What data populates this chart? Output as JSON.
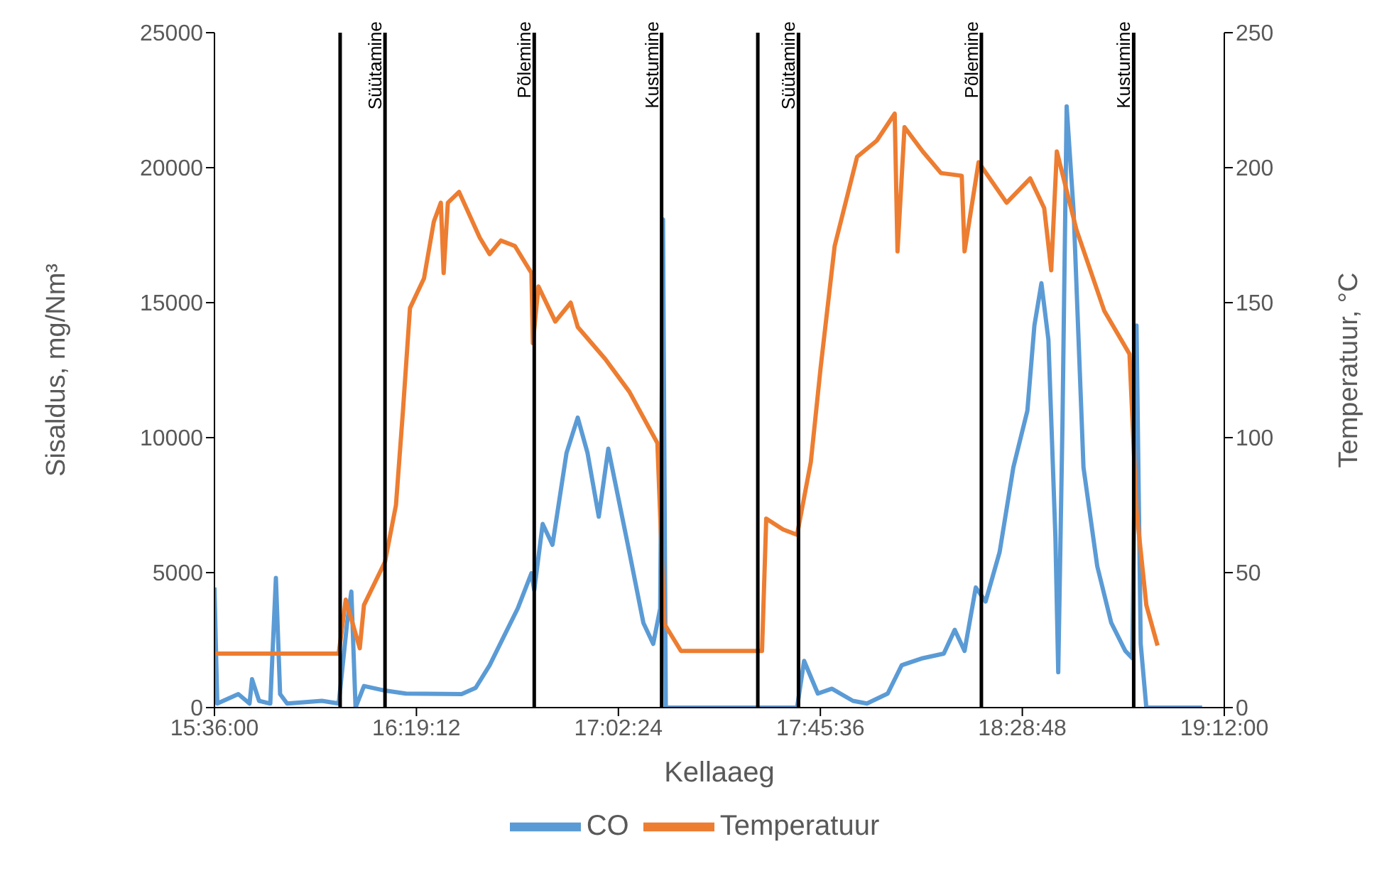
{
  "chart_data": {
    "type": "line",
    "xlabel": "Kellaaeg",
    "ylabel": "Sisaldus, mg/Nm³",
    "y2label": "Temperatuur, °C",
    "xlim": [
      15.6,
      19.2
    ],
    "xticks": [
      {
        "value": 15.6,
        "label": "15:36:00"
      },
      {
        "value": 16.32,
        "label": "16:19:12"
      },
      {
        "value": 17.04,
        "label": "17:02:24"
      },
      {
        "value": 17.76,
        "label": "17:45:36"
      },
      {
        "value": 18.48,
        "label": "18:28:48"
      },
      {
        "value": 19.2,
        "label": "19:12:00"
      }
    ],
    "ylim": [
      0,
      25000
    ],
    "yticks": [
      0,
      5000,
      10000,
      15000,
      20000,
      25000
    ],
    "y2lim": [
      0,
      250
    ],
    "y2ticks": [
      0,
      50,
      100,
      150,
      200,
      250
    ],
    "grid": false,
    "legend": "bottom",
    "marker": "none",
    "line_style": "solid",
    "series": [
      {
        "name": "CO",
        "color": "#5b9bd5",
        "x": [
          15.6,
          15.61,
          15.685,
          15.725,
          15.734,
          15.759,
          15.799,
          15.819,
          15.834,
          15.859,
          15.983,
          16.043,
          16.073,
          16.088,
          16.103,
          16.133,
          16.208,
          16.282,
          16.481,
          16.531,
          16.581,
          16.631,
          16.681,
          16.73,
          16.74,
          16.77,
          16.805,
          16.855,
          16.895,
          16.93,
          16.97,
          17.004,
          17.079,
          17.129,
          17.164,
          17.189,
          17.199,
          17.209,
          17.677,
          17.702,
          17.751,
          17.801,
          17.876,
          17.926,
          18.0,
          18.05,
          18.125,
          18.2,
          18.239,
          18.274,
          18.314,
          18.349,
          18.399,
          18.448,
          18.498,
          18.523,
          18.548,
          18.573,
          18.598,
          18.608,
          18.623,
          18.638,
          18.663,
          18.698,
          18.747,
          18.797,
          18.847,
          18.872,
          18.887,
          18.902,
          18.922,
          19.121
        ],
        "values": [
          4450,
          150,
          500,
          150,
          1050,
          250,
          150,
          4800,
          500,
          150,
          250,
          150,
          3150,
          4300,
          0,
          800,
          630,
          520,
          500,
          730,
          1570,
          2620,
          3670,
          4980,
          4350,
          6800,
          6030,
          9430,
          10740,
          9430,
          7070,
          9590,
          5760,
          3140,
          2360,
          3670,
          18080,
          0,
          0,
          1730,
          520,
          700,
          250,
          150,
          520,
          1570,
          1830,
          2000,
          2880,
          2100,
          4450,
          3930,
          5760,
          8900,
          11000,
          14150,
          15720,
          13620,
          6290,
          1310,
          10480,
          22270,
          18340,
          8900,
          5240,
          3140,
          2100,
          1830,
          14150,
          2360,
          0,
          0
        ]
      },
      {
        "name": "Temperatuur",
        "color": "#ed7d31",
        "axis": "y2",
        "x": [
          15.6,
          16.043,
          16.068,
          16.118,
          16.133,
          16.208,
          16.247,
          16.272,
          16.297,
          16.347,
          16.382,
          16.407,
          16.417,
          16.432,
          16.472,
          16.546,
          16.581,
          16.621,
          16.671,
          16.73,
          16.735,
          16.755,
          16.815,
          16.87,
          16.895,
          16.994,
          17.079,
          17.179,
          17.204,
          17.263,
          17.552,
          17.567,
          17.627,
          17.677,
          17.726,
          17.761,
          17.811,
          17.891,
          17.961,
          18.025,
          18.035,
          18.06,
          18.125,
          18.19,
          18.264,
          18.274,
          18.324,
          18.424,
          18.508,
          18.558,
          18.583,
          18.603,
          18.673,
          18.772,
          18.862,
          18.887,
          18.922,
          18.962
        ],
        "values": [
          20,
          20,
          40,
          22,
          38,
          54,
          75,
          110,
          148,
          159,
          180,
          187,
          161,
          187,
          191,
          174,
          168,
          173,
          171,
          161,
          135,
          156,
          143,
          150,
          141,
          129,
          117,
          98,
          31,
          21,
          21,
          70,
          66,
          64,
          91,
          126,
          171,
          204,
          210,
          220,
          169,
          215,
          206,
          198,
          197,
          169,
          202,
          187,
          196,
          185,
          162,
          206,
          177,
          147,
          131,
          73,
          38,
          23
        ]
      }
    ],
    "ref_lines": [
      {
        "axis": "x",
        "value": 16.048,
        "label": null,
        "color": "#000000"
      },
      {
        "axis": "x",
        "value": 16.208,
        "label": "Süütamine",
        "color": "#000000"
      },
      {
        "axis": "x",
        "value": 16.74,
        "label": "Põlemine",
        "color": "#000000"
      },
      {
        "axis": "x",
        "value": 17.194,
        "label": "Kustumine",
        "color": "#000000"
      },
      {
        "axis": "x",
        "value": 17.537,
        "label": null,
        "color": "#000000"
      },
      {
        "axis": "x",
        "value": 17.682,
        "label": "Süütamine",
        "color": "#000000"
      },
      {
        "axis": "x",
        "value": 18.334,
        "label": "Põlemine",
        "color": "#000000"
      },
      {
        "axis": "x",
        "value": 18.877,
        "label": "Kustumine",
        "color": "#000000"
      }
    ]
  }
}
